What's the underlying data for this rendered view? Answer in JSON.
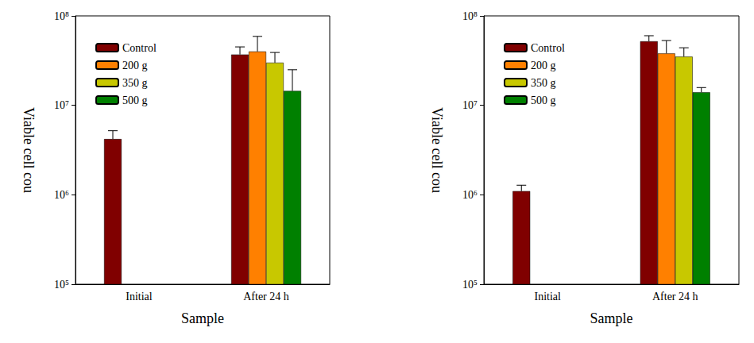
{
  "chart_data": [
    {
      "type": "bar",
      "xlabel": "Sample",
      "ylabel": "Viable cell cou",
      "categories": [
        "Initial",
        "After 24 h"
      ],
      "log": "y",
      "grid": false,
      "legend": "upper left",
      "ylim": [
        100000,
        100000000
      ],
      "yticks": [
        {
          "value": 100000,
          "label": "10⁵"
        },
        {
          "value": 1000000,
          "label": "10⁶"
        },
        {
          "value": 10000000,
          "label": "10⁷"
        },
        {
          "value": 100000000,
          "label": "10⁸"
        }
      ],
      "series": [
        {
          "name": "Control",
          "color": "#800000",
          "values": [
            4200000,
            37000000
          ],
          "errors": [
            1000000,
            8000000
          ]
        },
        {
          "name": "200 g",
          "color": "#ff8000",
          "values": [
            null,
            40000000
          ],
          "errors": [
            null,
            19000000
          ]
        },
        {
          "name": "350 g",
          "color": "#c8c800",
          "values": [
            null,
            30000000
          ],
          "errors": [
            null,
            9000000
          ]
        },
        {
          "name": "500 g",
          "color": "#008000",
          "values": [
            null,
            14500000
          ],
          "errors": [
            null,
            10500000
          ]
        }
      ]
    },
    {
      "type": "bar",
      "xlabel": "Sample",
      "ylabel": "Viable cell cou",
      "categories": [
        "Initial",
        "After 24 h"
      ],
      "log": "y",
      "grid": false,
      "legend": "upper left",
      "ylim": [
        100000,
        100000000
      ],
      "yticks": [
        {
          "value": 100000,
          "label": "10⁵"
        },
        {
          "value": 1000000,
          "label": "10⁶"
        },
        {
          "value": 10000000,
          "label": "10⁷"
        },
        {
          "value": 100000000,
          "label": "10⁸"
        }
      ],
      "series": [
        {
          "name": "Control",
          "color": "#800000",
          "values": [
            1100000,
            52000000
          ],
          "errors": [
            180000,
            8000000
          ]
        },
        {
          "name": "200 g",
          "color": "#ff8000",
          "values": [
            null,
            38000000
          ],
          "errors": [
            null,
            15000000
          ]
        },
        {
          "name": "350 g",
          "color": "#c8c800",
          "values": [
            null,
            35000000
          ],
          "errors": [
            null,
            9000000
          ]
        },
        {
          "name": "500 g",
          "color": "#008000",
          "values": [
            null,
            14000000
          ],
          "errors": [
            null,
            1800000
          ]
        }
      ]
    }
  ]
}
